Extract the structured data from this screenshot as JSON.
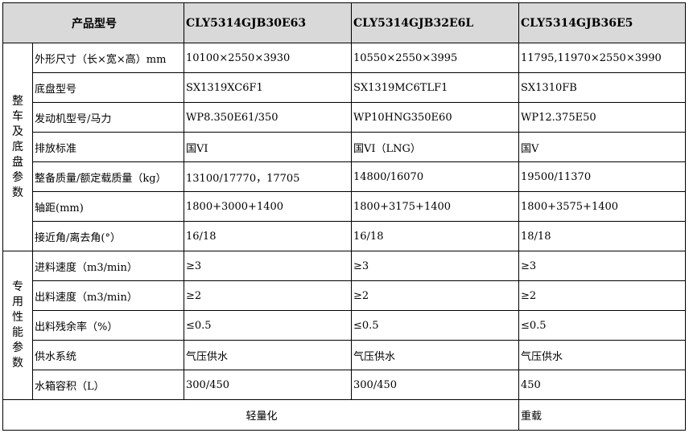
{
  "header": {
    "label": "产品型号",
    "models": [
      "CLY5314GJB30E63",
      "CLY5314GJB32E6L",
      "CLY5314GJB36E5"
    ]
  },
  "groups": [
    {
      "label": "整车及底盘参数",
      "rows": [
        {
          "param": "外形尺寸（长×宽×高）mm",
          "values": [
            "10100×2550×3930",
            "10550×2550×3995",
            "11795,11970×2550×3990"
          ]
        },
        {
          "param": "底盘型号",
          "values": [
            "SX1319XC6F1",
            "SX1319MC6TLF1",
            "SX1310FB"
          ]
        },
        {
          "param": "发动机型号/马力",
          "values": [
            "WP8.350E61/350",
            "WP10HNG350E60",
            "WP12.375E50"
          ]
        },
        {
          "param": "排放标准",
          "values": [
            "国VI",
            "国VI（LNG）",
            "国V"
          ]
        },
        {
          "param": "整备质量/额定载质量（kg）",
          "values": [
            "13100/17770，17705",
            "14800/16070",
            "19500/11370"
          ]
        },
        {
          "param": "轴距(mm)",
          "values": [
            "1800+3000+1400",
            "1800+3175+1400",
            "1800+3575+1400"
          ]
        },
        {
          "param": "接近角/离去角(°）",
          "values": [
            "16/18",
            "16/18",
            "18/18"
          ]
        }
      ]
    },
    {
      "label": "专用性能参数",
      "rows": [
        {
          "param": "进料速度（m3/min）",
          "values": [
            "≥3",
            "≥3",
            "≥3"
          ]
        },
        {
          "param": "出料速度（m3/min）",
          "values": [
            "≥2",
            "≥2",
            "≥2"
          ]
        },
        {
          "param": "出料残余率（%）",
          "values": [
            "≤0.5",
            "≤0.5",
            "≤0.5"
          ]
        },
        {
          "param": "供水系统",
          "values": [
            "气压供水",
            "气压供水",
            "气压供水"
          ]
        },
        {
          "param": "水箱容积（L）",
          "values": [
            "300/450",
            "300/450",
            "450"
          ]
        }
      ]
    }
  ],
  "footer": {
    "light": "轻量化",
    "heavy": "重载"
  }
}
